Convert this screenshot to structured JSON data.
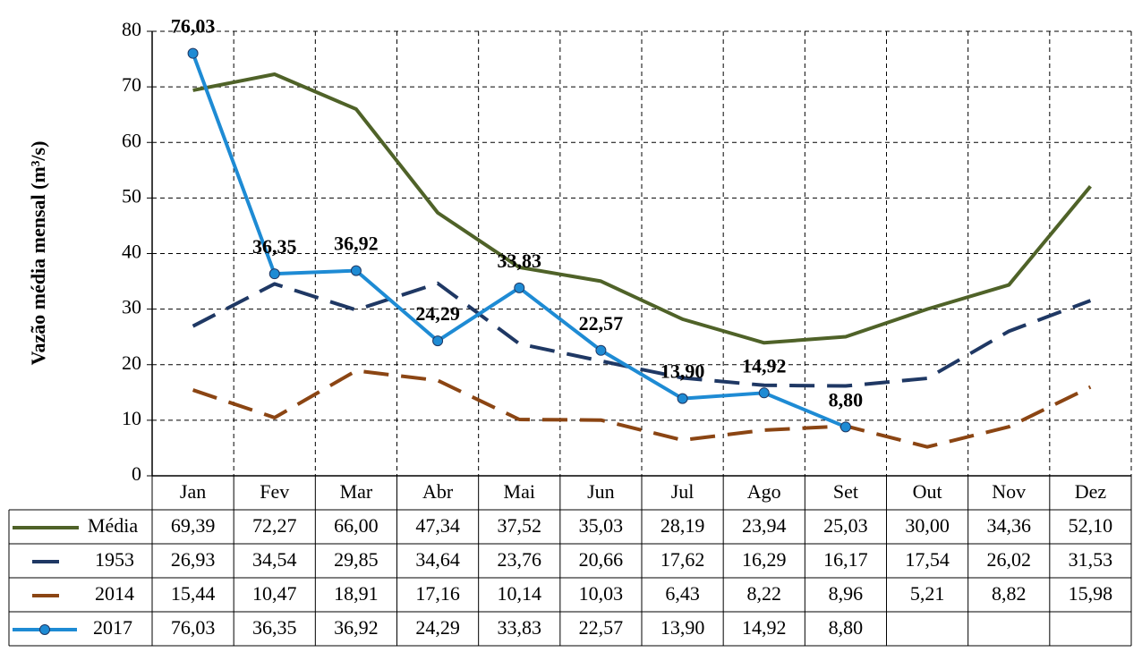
{
  "chart_data": {
    "type": "line",
    "y_label": "Vazão média mensal (m³/s)",
    "categories": [
      "Jan",
      "Fev",
      "Mar",
      "Abr",
      "Mai",
      "Jun",
      "Jul",
      "Ago",
      "Set",
      "Out",
      "Nov",
      "Dez"
    ],
    "ylim": [
      0,
      80
    ],
    "yticks": [
      0,
      10,
      20,
      30,
      40,
      50,
      60,
      70,
      80
    ],
    "grid": true,
    "series": [
      {
        "name": "Média",
        "color": "#4f6228",
        "line_style": "solid",
        "marker": false,
        "values": [
          69.39,
          72.27,
          66.0,
          47.34,
          37.52,
          35.03,
          28.19,
          23.94,
          25.03,
          30.0,
          34.36,
          52.1
        ],
        "value_labels": [
          "69,39",
          "72,27",
          "66,00",
          "47,34",
          "37,52",
          "35,03",
          "28,19",
          "23,94",
          "25,03",
          "30,00",
          "34,36",
          "52,10"
        ]
      },
      {
        "name": "1953",
        "color": "#1f3864",
        "line_style": "dashed",
        "marker": false,
        "values": [
          26.93,
          34.54,
          29.85,
          34.64,
          23.76,
          20.66,
          17.62,
          16.29,
          16.17,
          17.54,
          26.02,
          31.53
        ],
        "value_labels": [
          "26,93",
          "34,54",
          "29,85",
          "34,64",
          "23,76",
          "20,66",
          "17,62",
          "16,29",
          "16,17",
          "17,54",
          "26,02",
          "31,53"
        ]
      },
      {
        "name": "2014",
        "color": "#8b4513",
        "line_style": "dashed",
        "marker": false,
        "values": [
          15.44,
          10.47,
          18.91,
          17.16,
          10.14,
          10.03,
          6.43,
          8.22,
          8.96,
          5.21,
          8.82,
          15.98
        ],
        "value_labels": [
          "15,44",
          "10,47",
          "18,91",
          "17,16",
          "10,14",
          "10,03",
          "6,43",
          "8,22",
          "8,96",
          "5,21",
          "8,82",
          "15,98"
        ]
      },
      {
        "name": "2017",
        "color": "#1e8bd4",
        "line_style": "solid",
        "marker": true,
        "data_labels": true,
        "values": [
          76.03,
          36.35,
          36.92,
          24.29,
          33.83,
          22.57,
          13.9,
          14.92,
          8.8,
          null,
          null,
          null
        ],
        "value_labels": [
          "76,03",
          "36,35",
          "36,92",
          "24,29",
          "33,83",
          "22,57",
          "13,90",
          "14,92",
          "8,80",
          null,
          null,
          null
        ]
      }
    ]
  }
}
